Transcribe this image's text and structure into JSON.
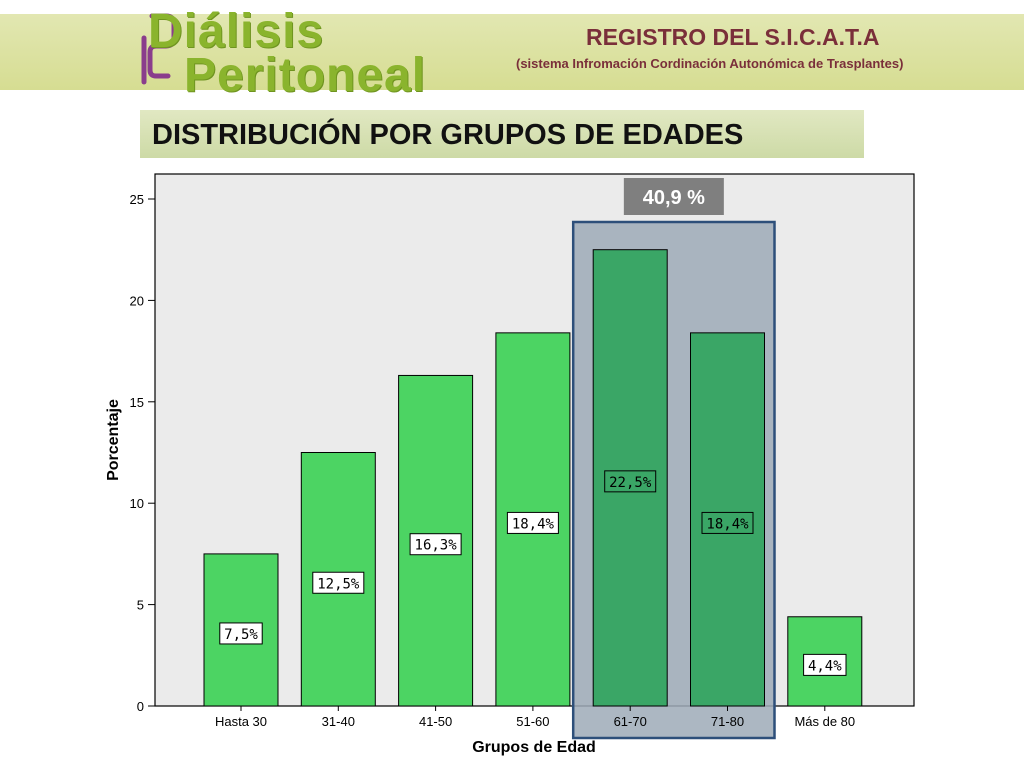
{
  "header": {
    "logo_line1": "Diálisis",
    "logo_line2": "Peritoneal",
    "registry_title": "REGISTRO DEL S.I.C.A.T.A",
    "registry_subtitle": "(sistema Infromación Cordinación Autonómica de Trasplantes)"
  },
  "slide": {
    "title": "DISTRIBUCIÓN POR GRUPOS DE EDADES"
  },
  "colors": {
    "bar": "#4cd463",
    "bar_highlight": "#3aa666",
    "highlight_box": "#9eaab7",
    "highlight_border": "#2d4f7a",
    "plot_bg": "#ebebeb",
    "callout_bg": "#7f7f7f"
  },
  "chart_data": {
    "type": "bar",
    "categories": [
      "Hasta 30",
      "31-40",
      "41-50",
      "51-60",
      "61-70",
      "71-80",
      "Más de 80"
    ],
    "values": [
      7.5,
      12.5,
      16.3,
      18.4,
      22.5,
      18.4,
      4.4
    ],
    "data_labels": [
      "7,5%",
      "12,5%",
      "16,3%",
      "18,4%",
      "22,5%",
      "18,4%",
      "4,4%"
    ],
    "highlighted_categories": [
      "61-70",
      "71-80"
    ],
    "highlight_callout": "40,9 %",
    "xlabel": "Grupos de Edad",
    "ylabel": "Porcentaje",
    "ylim": [
      0,
      25
    ],
    "yticks": [
      0,
      5,
      10,
      15,
      20,
      25
    ],
    "ytick_labels": [
      "0",
      "5",
      "10",
      "15",
      "20",
      "25"
    ],
    "grid": false,
    "legend": "none"
  }
}
